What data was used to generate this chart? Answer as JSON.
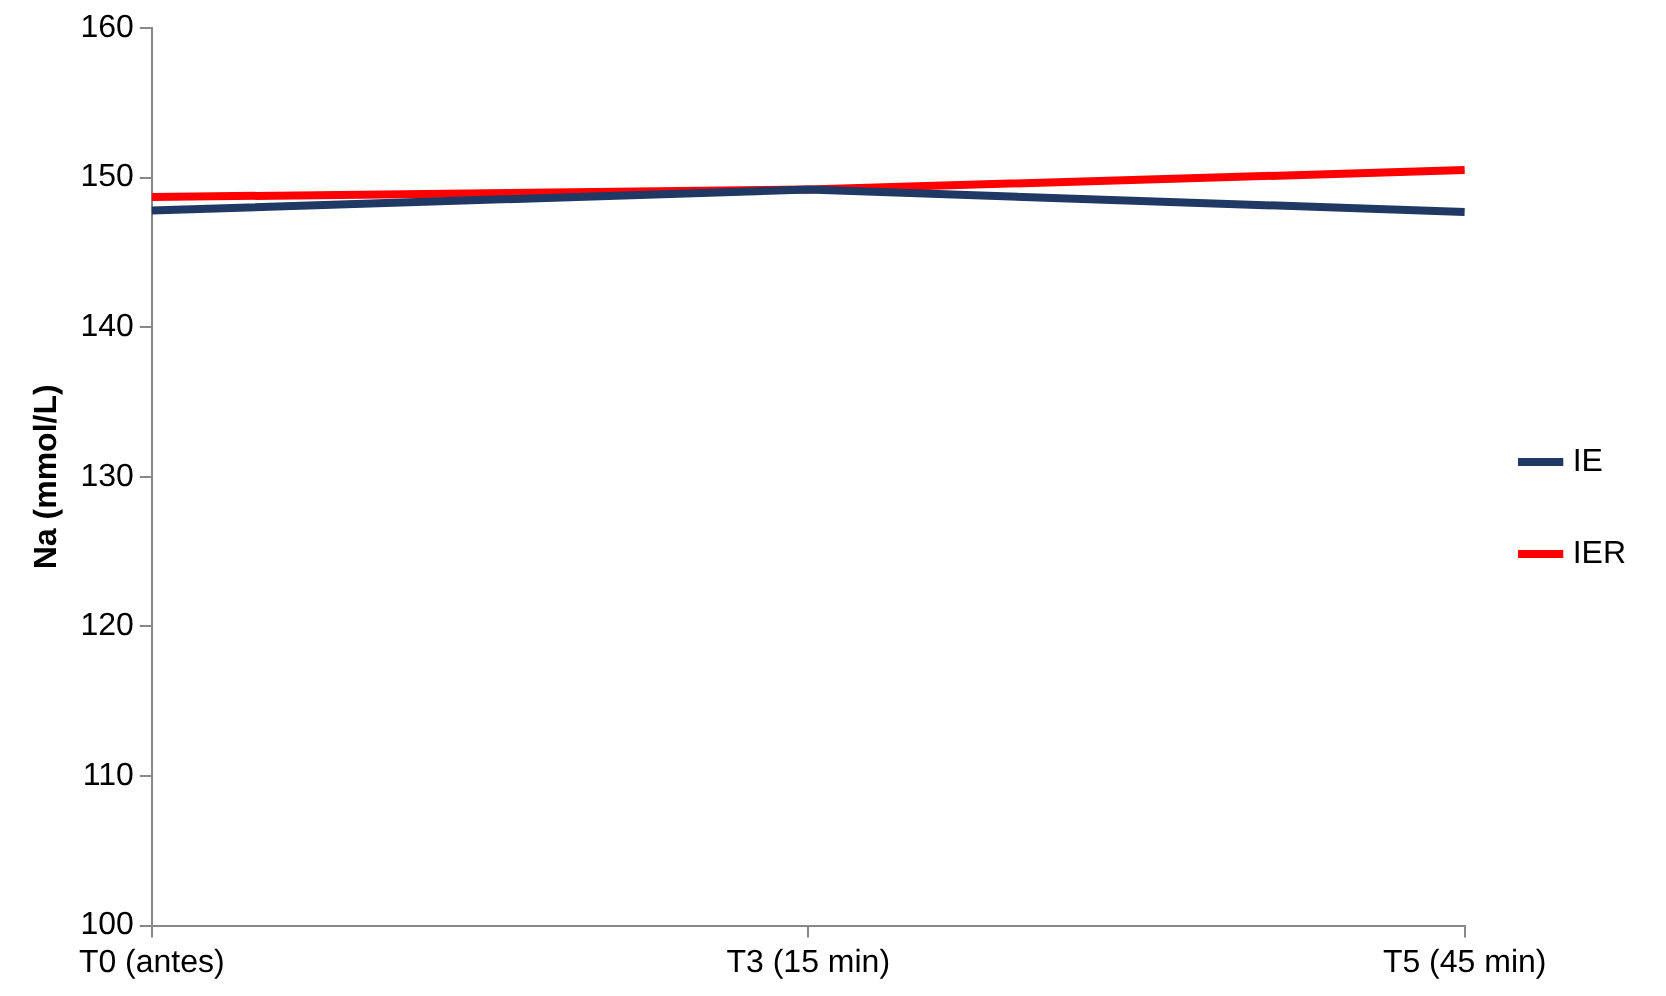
{
  "chart_data": {
    "type": "line",
    "ylabel": "Na (mmol/L)",
    "categories": [
      "T0 (antes)",
      "T3 (15 min)",
      "T5 (45 min)"
    ],
    "series": [
      {
        "name": "IE",
        "color": "#1f3864",
        "values": [
          147.8,
          149.2,
          147.7
        ]
      },
      {
        "name": "IER",
        "color": "#ff0000",
        "values": [
          148.7,
          149.2,
          150.5
        ]
      }
    ],
    "ylim": [
      100,
      160
    ],
    "yticks": [
      100,
      110,
      120,
      130,
      140,
      150,
      160
    ],
    "grid": false,
    "legend": "right",
    "marker": "none",
    "line_style": "solid"
  }
}
